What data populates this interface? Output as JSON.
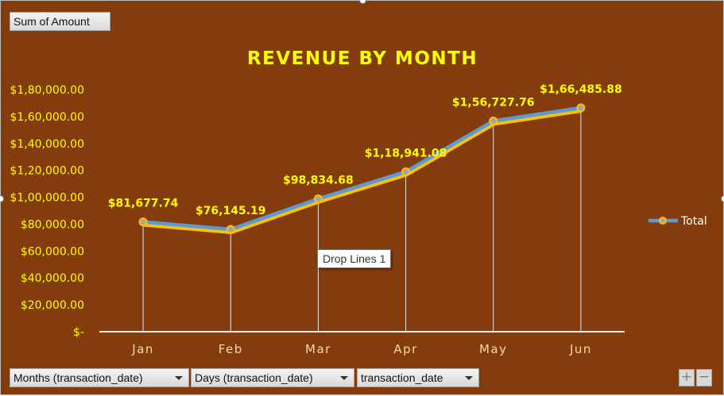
{
  "field_buttons": {
    "value_field": "Sum of Amount",
    "axis_fields": [
      "Months (transaction_date)",
      "Days (transaction_date)",
      "transaction_date"
    ]
  },
  "zoom": {
    "expand_label": "+",
    "collapse_label": "−"
  },
  "tooltip": "Drop Lines 1",
  "colors": {
    "background": "#843c0c",
    "text_yellow": "#ffff00",
    "month_label": "#f7d9b0",
    "series_line": "#5b9bd5",
    "series_shadow": "#ffc000",
    "marker_fill": "#a5a5a5"
  },
  "chart_data": {
    "type": "line",
    "title": "REVENUE BY MONTH",
    "xlabel": "",
    "ylabel": "",
    "categories": [
      "Jan",
      "Feb",
      "Mar",
      "Apr",
      "May",
      "Jun"
    ],
    "series": [
      {
        "name": "Total",
        "values": [
          81677.74,
          76145.19,
          98834.68,
          118941.08,
          156727.76,
          166485.88
        ]
      }
    ],
    "data_labels": [
      "$81,677.74",
      "$76,145.19",
      "$98,834.68",
      "$1,18,941.08",
      "$1,56,727.76",
      "$1,66,485.88"
    ],
    "ylim": [
      0,
      180000
    ],
    "y_ticks": [
      0,
      20000,
      40000,
      60000,
      80000,
      100000,
      120000,
      140000,
      160000,
      180000
    ],
    "y_tick_labels": [
      "$-",
      "$20,000.00",
      "$40,000.00",
      "$60,000.00",
      "$80,000.00",
      "$1,00,000.00",
      "$1,20,000.00",
      "$1,40,000.00",
      "$1,60,000.00",
      "$1,80,000.00"
    ],
    "gridlines": false,
    "drop_lines": true,
    "legend": {
      "position": "right",
      "entries": [
        "Total"
      ]
    }
  }
}
